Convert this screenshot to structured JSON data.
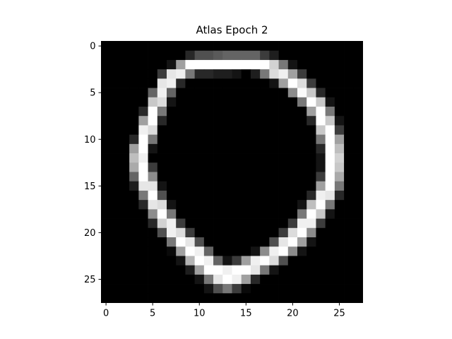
{
  "chart_data": {
    "type": "heatmap",
    "title": "Atlas Epoch 2",
    "xlabel": "",
    "ylabel": "",
    "colormap": "gray",
    "value_range": [
      0,
      255
    ],
    "xlim": [
      -0.5,
      27.5
    ],
    "ylim": [
      27.5,
      -0.5
    ],
    "rows": 28,
    "cols": 28,
    "x_ticks": [
      0,
      5,
      10,
      15,
      20,
      25
    ],
    "y_ticks": [
      0,
      5,
      10,
      15,
      20,
      25
    ],
    "x_tick_labels": [
      "0",
      "5",
      "10",
      "15",
      "20",
      "25"
    ],
    "y_tick_labels": [
      "0",
      "5",
      "10",
      "15",
      "20",
      "25"
    ],
    "grid": false,
    "pixels": [
      [
        0,
        0,
        0,
        0,
        0,
        0,
        0,
        0,
        0,
        0,
        0,
        0,
        0,
        0,
        0,
        0,
        0,
        0,
        0,
        0,
        0,
        0,
        0,
        0,
        0,
        0,
        0,
        0
      ],
      [
        0,
        0,
        0,
        0,
        0,
        0,
        0,
        0,
        0,
        40,
        80,
        80,
        90,
        100,
        100,
        100,
        100,
        60,
        30,
        0,
        0,
        0,
        0,
        0,
        0,
        0,
        0,
        0
      ],
      [
        0,
        0,
        0,
        0,
        0,
        0,
        0,
        20,
        160,
        255,
        255,
        255,
        255,
        255,
        255,
        255,
        255,
        255,
        210,
        120,
        20,
        0,
        0,
        0,
        0,
        0,
        0,
        0
      ],
      [
        0,
        0,
        0,
        0,
        0,
        0,
        60,
        230,
        240,
        120,
        40,
        40,
        30,
        30,
        20,
        0,
        30,
        120,
        220,
        240,
        160,
        60,
        0,
        0,
        0,
        0,
        0,
        0
      ],
      [
        0,
        0,
        0,
        0,
        0,
        0,
        230,
        240,
        40,
        0,
        0,
        0,
        0,
        0,
        0,
        0,
        0,
        0,
        20,
        160,
        255,
        220,
        60,
        0,
        0,
        0,
        0,
        0
      ],
      [
        0,
        0,
        0,
        0,
        0,
        100,
        240,
        100,
        0,
        0,
        0,
        0,
        0,
        0,
        0,
        0,
        0,
        0,
        0,
        0,
        140,
        250,
        200,
        40,
        0,
        0,
        0,
        0
      ],
      [
        0,
        0,
        0,
        0,
        0,
        200,
        220,
        20,
        0,
        0,
        0,
        0,
        0,
        0,
        0,
        0,
        0,
        0,
        0,
        0,
        0,
        120,
        255,
        200,
        20,
        0,
        0,
        0
      ],
      [
        0,
        0,
        0,
        0,
        40,
        255,
        120,
        0,
        0,
        0,
        0,
        0,
        0,
        0,
        0,
        0,
        0,
        0,
        0,
        0,
        0,
        0,
        160,
        255,
        120,
        0,
        0,
        0
      ],
      [
        0,
        0,
        0,
        0,
        160,
        255,
        40,
        0,
        0,
        0,
        0,
        0,
        0,
        0,
        0,
        0,
        0,
        0,
        0,
        0,
        0,
        0,
        40,
        255,
        200,
        20,
        0,
        0
      ],
      [
        0,
        0,
        0,
        0,
        240,
        220,
        0,
        0,
        0,
        0,
        0,
        0,
        0,
        0,
        0,
        0,
        0,
        0,
        0,
        0,
        0,
        0,
        0,
        200,
        255,
        60,
        0,
        0
      ],
      [
        0,
        0,
        0,
        40,
        255,
        120,
        0,
        0,
        0,
        0,
        0,
        0,
        0,
        0,
        0,
        0,
        0,
        0,
        0,
        0,
        0,
        0,
        0,
        120,
        255,
        160,
        0,
        0
      ],
      [
        0,
        0,
        0,
        160,
        255,
        20,
        0,
        0,
        0,
        0,
        0,
        0,
        0,
        0,
        0,
        0,
        0,
        0,
        0,
        0,
        0,
        0,
        0,
        40,
        255,
        190,
        0,
        0
      ],
      [
        0,
        0,
        0,
        190,
        240,
        0,
        0,
        0,
        0,
        0,
        0,
        0,
        0,
        0,
        0,
        0,
        0,
        0,
        0,
        0,
        0,
        0,
        0,
        20,
        255,
        210,
        0,
        0
      ],
      [
        0,
        0,
        0,
        170,
        255,
        60,
        0,
        0,
        0,
        0,
        0,
        0,
        0,
        0,
        0,
        0,
        0,
        0,
        0,
        0,
        0,
        0,
        0,
        20,
        255,
        200,
        0,
        0
      ],
      [
        0,
        0,
        0,
        100,
        255,
        140,
        0,
        0,
        0,
        0,
        0,
        0,
        0,
        0,
        0,
        0,
        0,
        0,
        0,
        0,
        0,
        0,
        0,
        60,
        255,
        170,
        0,
        0
      ],
      [
        0,
        0,
        0,
        30,
        230,
        230,
        20,
        0,
        0,
        0,
        0,
        0,
        0,
        0,
        0,
        0,
        0,
        0,
        0,
        0,
        0,
        0,
        0,
        160,
        255,
        120,
        0,
        0
      ],
      [
        0,
        0,
        0,
        0,
        120,
        255,
        80,
        0,
        0,
        0,
        0,
        0,
        0,
        0,
        0,
        0,
        0,
        0,
        0,
        0,
        0,
        0,
        40,
        240,
        230,
        40,
        0,
        0
      ],
      [
        0,
        0,
        0,
        0,
        40,
        230,
        220,
        20,
        0,
        0,
        0,
        0,
        0,
        0,
        0,
        0,
        0,
        0,
        0,
        0,
        0,
        20,
        190,
        255,
        120,
        0,
        0,
        0
      ],
      [
        0,
        0,
        0,
        0,
        0,
        140,
        255,
        120,
        0,
        0,
        0,
        0,
        0,
        0,
        0,
        0,
        0,
        0,
        0,
        0,
        0,
        120,
        255,
        200,
        20,
        0,
        0,
        0
      ],
      [
        0,
        0,
        0,
        0,
        0,
        40,
        210,
        240,
        60,
        0,
        0,
        0,
        0,
        0,
        0,
        0,
        0,
        0,
        0,
        0,
        60,
        240,
        240,
        60,
        0,
        0,
        0,
        0
      ],
      [
        0,
        0,
        0,
        0,
        0,
        0,
        80,
        240,
        220,
        60,
        0,
        0,
        0,
        0,
        0,
        0,
        0,
        0,
        0,
        60,
        220,
        255,
        140,
        0,
        0,
        0,
        0,
        0
      ],
      [
        0,
        0,
        0,
        0,
        0,
        0,
        0,
        120,
        255,
        230,
        80,
        0,
        0,
        0,
        0,
        0,
        0,
        0,
        80,
        230,
        255,
        160,
        20,
        0,
        0,
        0,
        0,
        0
      ],
      [
        0,
        0,
        0,
        0,
        0,
        0,
        0,
        10,
        160,
        255,
        240,
        100,
        0,
        0,
        0,
        0,
        20,
        140,
        240,
        255,
        140,
        20,
        0,
        0,
        0,
        0,
        0,
        0
      ],
      [
        0,
        0,
        0,
        0,
        0,
        0,
        0,
        0,
        20,
        180,
        255,
        240,
        100,
        20,
        60,
        160,
        240,
        255,
        220,
        80,
        0,
        0,
        0,
        0,
        0,
        0,
        0,
        0
      ],
      [
        0,
        0,
        0,
        0,
        0,
        0,
        0,
        0,
        0,
        30,
        160,
        255,
        255,
        240,
        255,
        255,
        230,
        120,
        20,
        0,
        0,
        0,
        0,
        0,
        0,
        0,
        0,
        0
      ],
      [
        0,
        0,
        0,
        0,
        0,
        0,
        0,
        0,
        0,
        0,
        20,
        120,
        230,
        255,
        240,
        160,
        40,
        0,
        0,
        0,
        0,
        0,
        0,
        0,
        0,
        0,
        0,
        0
      ],
      [
        0,
        0,
        0,
        0,
        0,
        0,
        0,
        0,
        0,
        0,
        0,
        20,
        80,
        120,
        60,
        10,
        0,
        0,
        0,
        0,
        0,
        0,
        0,
        0,
        0,
        0,
        0,
        0
      ],
      [
        0,
        0,
        0,
        0,
        0,
        0,
        0,
        0,
        0,
        0,
        0,
        0,
        0,
        0,
        0,
        0,
        0,
        0,
        0,
        0,
        0,
        0,
        0,
        0,
        0,
        0,
        0,
        0
      ]
    ]
  }
}
